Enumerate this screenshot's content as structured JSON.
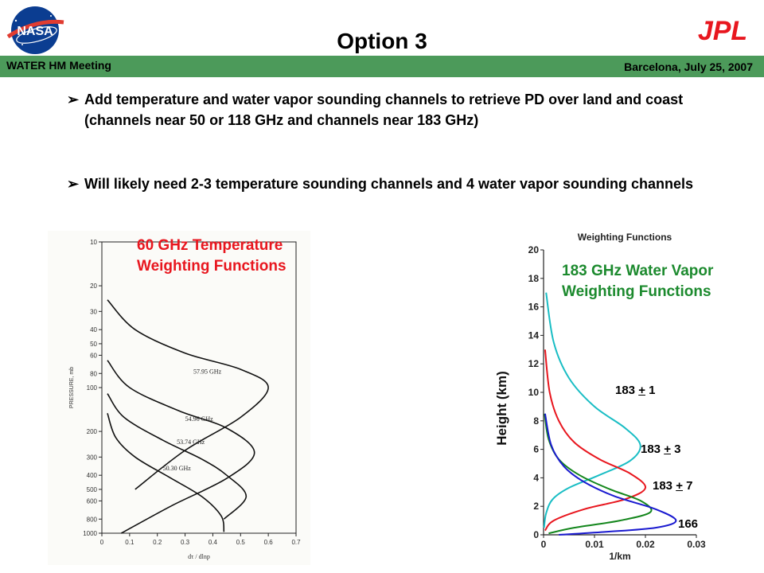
{
  "header": {
    "title": "Option 3",
    "meeting": "WATER HM Meeting",
    "location_date": "Barcelona, July 25, 2007",
    "left_logo": "NASA",
    "right_logo": "JPL",
    "banner_color": "#4c9a5a"
  },
  "bullets": [
    {
      "text": "Add temperature and water vapor sounding channels to retrieve PD over land and coast (channels near 50 or 118 GHz and channels near 183 GHz)"
    },
    {
      "text": "Will likely need 2-3 temperature sounding channels and 4 water vapor sounding channels"
    }
  ],
  "chart_data": [
    {
      "type": "line",
      "caption": "60 GHz Temperature Weighting Functions",
      "caption_color": "#e8161e",
      "ylabel": "PRESSURE, mb",
      "xlabel": "dτ / dlnp",
      "y_scale": "log",
      "y_inverted": true,
      "ylim": [
        10,
        1000
      ],
      "xlim": [
        0,
        0.7
      ],
      "x_ticks": [
        "0",
        "0.1",
        "0.2",
        "0.3",
        "0.4",
        "0.5",
        "0.6",
        "0.7"
      ],
      "y_ticks": [
        "10",
        "20",
        "30",
        "40",
        "50",
        "60",
        "80",
        "100",
        "200",
        "300",
        "400",
        "500",
        "600",
        "800",
        "1000"
      ],
      "series": [
        {
          "name": "57.95 GHz",
          "x": [
            0.02,
            0.12,
            0.3,
            0.5,
            0.6,
            0.5,
            0.3,
            0.12
          ],
          "y": [
            25,
            40,
            58,
            75,
            100,
            160,
            270,
            500
          ]
        },
        {
          "name": "54.96 GHz",
          "x": [
            0.02,
            0.1,
            0.28,
            0.45,
            0.55,
            0.45,
            0.25,
            0.07
          ],
          "y": [
            65,
            100,
            145,
            190,
            280,
            420,
            650,
            1000
          ]
        },
        {
          "name": "53.74 GHz",
          "x": [
            0.02,
            0.08,
            0.22,
            0.36,
            0.45,
            0.52,
            0.44
          ],
          "y": [
            110,
            160,
            230,
            310,
            400,
            560,
            800
          ]
        },
        {
          "name": "50.30 GHz",
          "x": [
            0.02,
            0.05,
            0.12,
            0.24,
            0.36,
            0.43,
            0.44
          ],
          "y": [
            150,
            220,
            300,
            410,
            560,
            760,
            980
          ]
        }
      ]
    },
    {
      "type": "line",
      "title": "Weighting Functions",
      "caption": "183 GHz Water Vapor Weighting Functions",
      "caption_color": "#1c8a2e",
      "ylabel": "Height (km)",
      "xlabel": "1/km",
      "xlim": [
        0,
        0.03
      ],
      "ylim": [
        0,
        20
      ],
      "x_ticks": [
        "0",
        "0.01",
        "0.02",
        "0.03"
      ],
      "y_ticks": [
        "0",
        "2",
        "4",
        "6",
        "8",
        "10",
        "12",
        "14",
        "16",
        "18",
        "20"
      ],
      "series": [
        {
          "label": "183 + 1",
          "color": "#19bdc4",
          "x": [
            0.0001,
            0.0005,
            0.0018,
            0.005,
            0.011,
            0.017,
            0.019,
            0.016,
            0.01,
            0.005,
            0.002,
            0.0005
          ],
          "y": [
            0.5,
            1.5,
            2.5,
            3.3,
            4.2,
            5.2,
            6.3,
            7.5,
            9.0,
            11.0,
            13.5,
            17
          ]
        },
        {
          "label": "183 + 3",
          "color": "#e8161e",
          "x": [
            0.0003,
            0.002,
            0.008,
            0.016,
            0.02,
            0.017,
            0.011,
            0.006,
            0.003,
            0.0012,
            0.0003
          ],
          "y": [
            0.3,
            1.0,
            1.8,
            2.5,
            3.3,
            4.3,
            5.3,
            6.5,
            8.0,
            10.0,
            13
          ]
        },
        {
          "label": "183 + 7",
          "color": "#13861c",
          "x": [
            0.001,
            0.006,
            0.015,
            0.021,
            0.019,
            0.013,
            0.007,
            0.003,
            0.001,
            0.0002
          ],
          "y": [
            0.1,
            0.5,
            1.0,
            1.6,
            2.4,
            3.2,
            4.2,
            5.3,
            6.7,
            8.5
          ]
        },
        {
          "label": "166",
          "color": "#1a1ad0",
          "x": [
            0.003,
            0.012,
            0.022,
            0.026,
            0.022,
            0.014,
            0.008,
            0.004,
            0.0015,
            0.0003
          ],
          "y": [
            0.0,
            0.2,
            0.5,
            1.0,
            1.8,
            2.7,
            3.7,
            4.8,
            6.3,
            8.5
          ]
        }
      ]
    }
  ],
  "labels_183": [
    {
      "base": "183 ",
      "pm": "+",
      "num": " 1"
    },
    {
      "base": "183 ",
      "pm": "+",
      "num": " 3"
    },
    {
      "base": "183 ",
      "pm": "+",
      "num": " 7"
    },
    {
      "base": "166",
      "pm": "",
      "num": ""
    }
  ]
}
